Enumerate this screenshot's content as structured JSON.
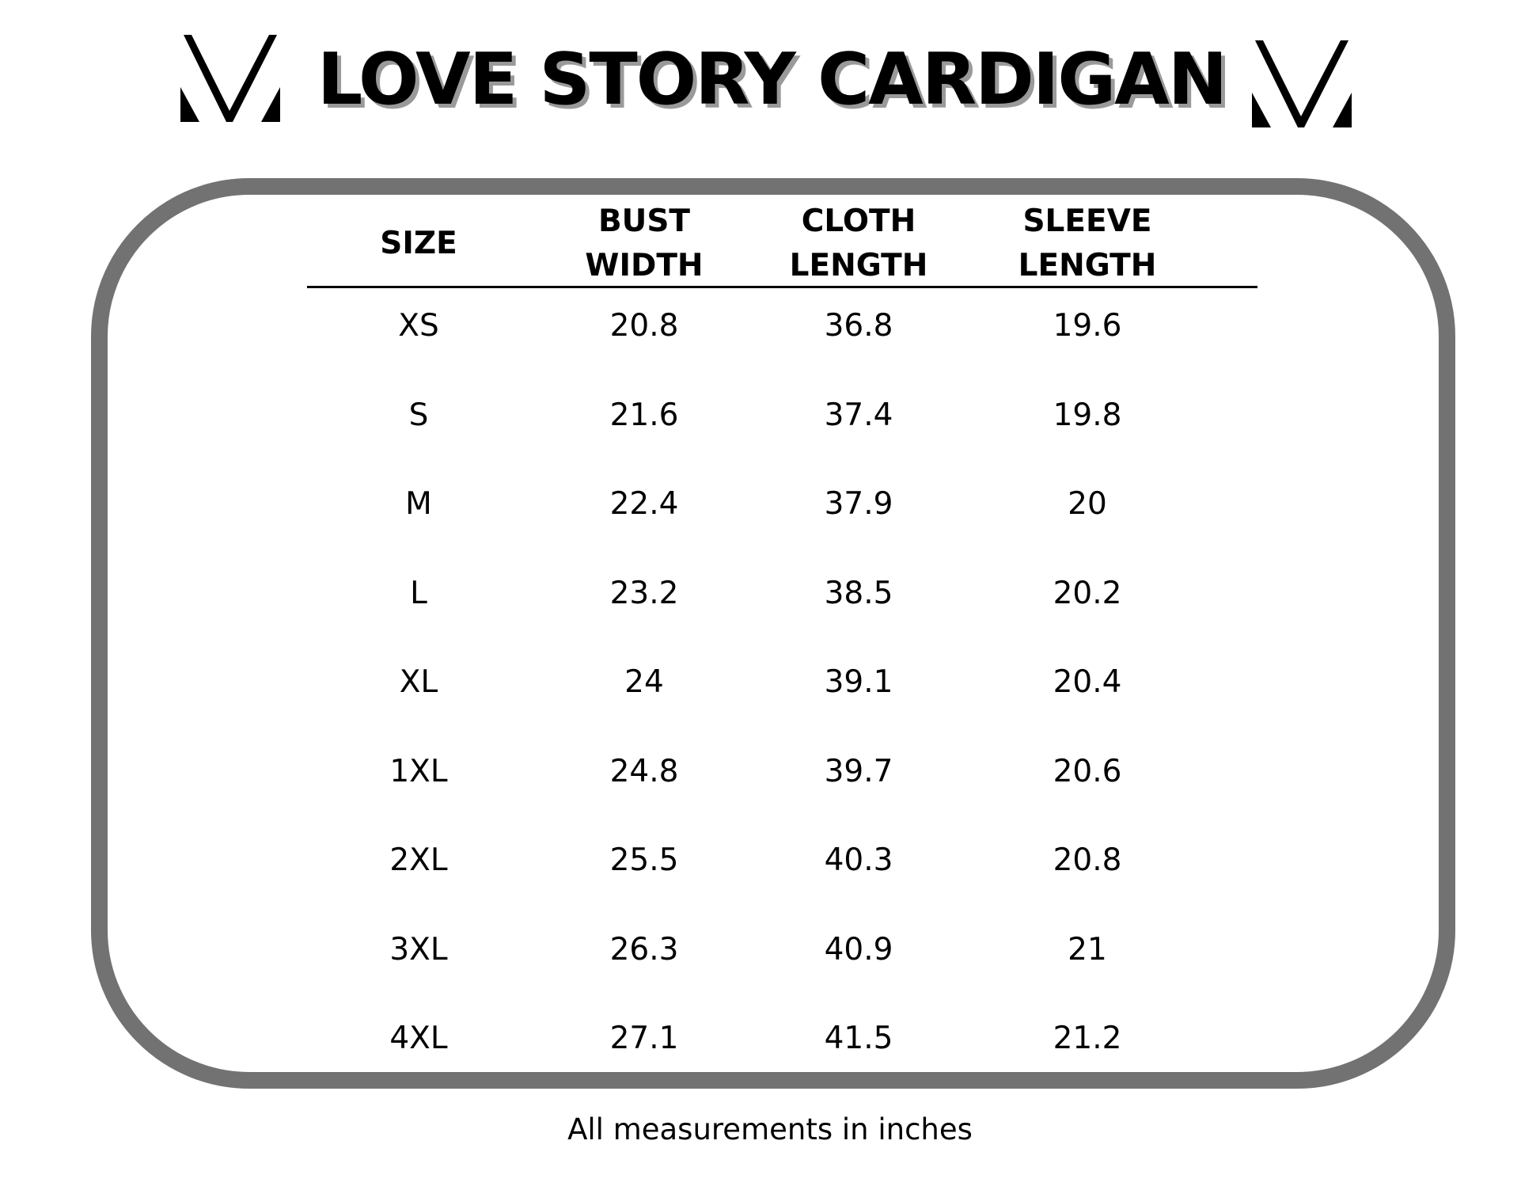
{
  "title": "LOVE STORY CARDIGAN",
  "logo_icon": "mv-chevron-logo",
  "columns": [
    "SIZE",
    "BUST WIDTH",
    "CLOTH LENGTH",
    "SLEEVE LENGTH"
  ],
  "column_lines": [
    [
      "SIZE"
    ],
    [
      "BUST",
      "WIDTH"
    ],
    [
      "CLOTH",
      "LENGTH"
    ],
    [
      "SLEEVE",
      "LENGTH"
    ]
  ],
  "rows": [
    [
      "XS",
      "20.8",
      "36.8",
      "19.6"
    ],
    [
      "S",
      "21.6",
      "37.4",
      "19.8"
    ],
    [
      "M",
      "22.4",
      "37.9",
      "20"
    ],
    [
      "L",
      "23.2",
      "38.5",
      "20.2"
    ],
    [
      "XL",
      "24",
      "39.1",
      "20.4"
    ],
    [
      "1XL",
      "24.8",
      "39.7",
      "20.6"
    ],
    [
      "2XL",
      "25.5",
      "40.3",
      "20.8"
    ],
    [
      "3XL",
      "26.3",
      "40.9",
      "21"
    ],
    [
      "4XL",
      "27.1",
      "41.5",
      "21.2"
    ]
  ],
  "footer": "All measurements in inches",
  "colors": {
    "border": "#727272",
    "shadow": "#9a9a9a",
    "text": "#000000"
  }
}
